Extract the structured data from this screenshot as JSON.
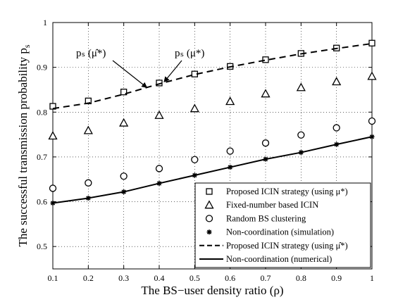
{
  "chart_data": {
    "type": "line",
    "xlabel": "The BS−user density ratio (ρ)",
    "ylabel": "The successful transmission probability  p",
    "ylabel_subscript": "s",
    "xlim": [
      0.1,
      1.0
    ],
    "ylim": [
      0.45,
      1.0
    ],
    "x": [
      0.1,
      0.2,
      0.3,
      0.4,
      0.5,
      0.6,
      0.7,
      0.8,
      0.9,
      1.0
    ],
    "xticks": [
      "0.1",
      "0.2",
      "0.3",
      "0.4",
      "0.5",
      "0.6",
      "0.7",
      "0.8",
      "0.9",
      "1"
    ],
    "yticks": [
      {
        "value": 0.5,
        "label": "0.5"
      },
      {
        "value": 0.6,
        "label": "0.6"
      },
      {
        "value": 0.7,
        "label": "0.7"
      },
      {
        "value": 0.8,
        "label": "0.8"
      },
      {
        "value": 0.9,
        "label": "0.9"
      },
      {
        "value": 1.0,
        "label": "1"
      }
    ],
    "grid": true,
    "legend_position": "bottom-right",
    "series": [
      {
        "name": "Proposed ICIN strategy (using μ*)",
        "marker": "square",
        "line": "none",
        "values": [
          0.813,
          0.825,
          0.845,
          0.865,
          0.885,
          0.902,
          0.917,
          0.931,
          0.943,
          0.954
        ]
      },
      {
        "name": "Fixed-number based ICIN",
        "marker": "triangle",
        "line": "none",
        "values": [
          0.747,
          0.759,
          0.776,
          0.793,
          0.808,
          0.824,
          0.841,
          0.855,
          0.868,
          0.88
        ]
      },
      {
        "name": "Random BS clustering",
        "marker": "circle",
        "line": "none",
        "values": [
          0.63,
          0.642,
          0.657,
          0.674,
          0.694,
          0.713,
          0.731,
          0.749,
          0.765,
          0.78
        ]
      },
      {
        "name": "Non-coordination (simulation)",
        "marker": "star",
        "line": "none",
        "values": [
          0.597,
          0.608,
          0.622,
          0.641,
          0.659,
          0.677,
          0.695,
          0.71,
          0.728,
          0.745
        ]
      },
      {
        "name": "Proposed ICIN strategy (using μ̂*)",
        "marker": "none",
        "line": "dashed",
        "values": [
          0.808,
          0.82,
          0.84,
          0.863,
          0.884,
          0.901,
          0.916,
          0.93,
          0.942,
          0.953
        ]
      },
      {
        "name": "Non-coordination (numerical)",
        "marker": "none",
        "line": "solid",
        "values": [
          0.597,
          0.608,
          0.622,
          0.641,
          0.659,
          0.677,
          0.695,
          0.71,
          0.728,
          0.745
        ]
      }
    ],
    "annotations": [
      {
        "text": "pₛ (μ̂*)",
        "target_x": 0.365,
        "target_y": 0.855
      },
      {
        "text": "pₛ (μ*)",
        "target_x": 0.41,
        "target_y": 0.866
      }
    ]
  }
}
